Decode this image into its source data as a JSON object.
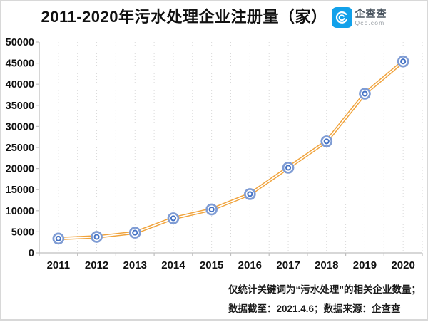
{
  "header": {
    "title": "2011-2020年污水处理企业注册量（家）",
    "logo": {
      "name": "企查查",
      "domain": "Qcc.com",
      "icon_color": "#12a1ea"
    }
  },
  "chart_data": {
    "type": "line",
    "title": "2011-2020年污水处理企业注册量（家）",
    "categories": [
      "2011",
      "2012",
      "2013",
      "2014",
      "2015",
      "2016",
      "2017",
      "2018",
      "2019",
      "2020"
    ],
    "series": [
      {
        "name": "污水处理企业注册量",
        "values": [
          3400,
          3800,
          4800,
          8200,
          10300,
          13950,
          20200,
          26450,
          37750,
          45400
        ]
      }
    ],
    "xlabel": "",
    "ylabel": "",
    "ylim": [
      0,
      50000
    ],
    "ytick_step": 5000,
    "legend": "none",
    "grid": "vertical-dotted",
    "line_color": "#f0a33c",
    "line_core_color": "#ffffff",
    "marker_color": "#4472c4",
    "marker_ring_color": "#7f9cd4",
    "axis_color": "#bfbfbf",
    "grid_color": "#d9d9d9",
    "tick_label_color": "#111111"
  },
  "footnote": {
    "line1": "仅统计关键词为“污水处理”的相关企业数量；",
    "line2": "数据截至：2021.4.6；数据来源：企查查"
  }
}
